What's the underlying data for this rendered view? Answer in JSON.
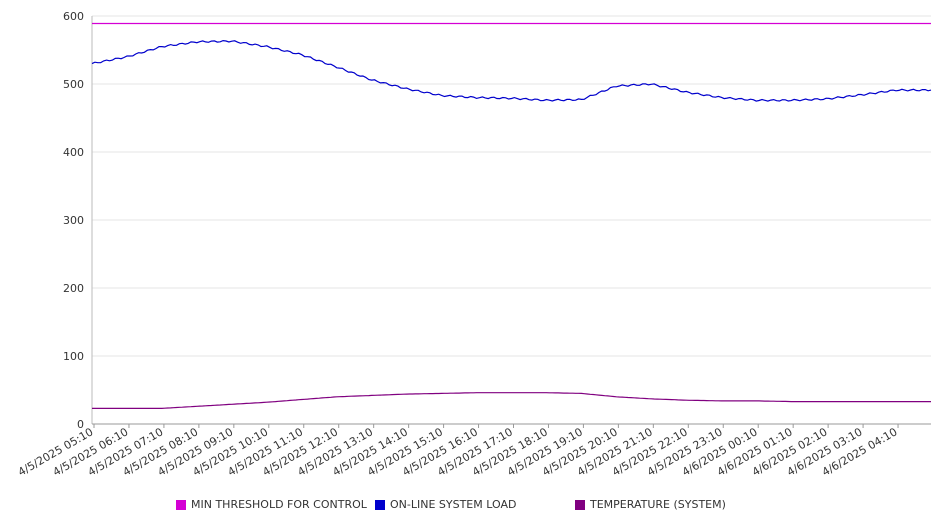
{
  "chart_data": {
    "type": "line",
    "y_ticks": [
      "0",
      "100",
      "200",
      "300",
      "400",
      "500",
      "600"
    ],
    "ylim": [
      0,
      600
    ],
    "grid": true,
    "legend_placement": "bottom",
    "x": [
      "4/5/2025 05:10",
      "4/5/2025 06:10",
      "4/5/2025 07:10",
      "4/5/2025 08:10",
      "4/5/2025 09:10",
      "4/5/2025 10:10",
      "4/5/2025 11:10",
      "4/5/2025 12:10",
      "4/5/2025 13:10",
      "4/5/2025 14:10",
      "4/5/2025 15:10",
      "4/5/2025 16:10",
      "4/5/2025 17:10",
      "4/5/2025 18:10",
      "4/5/2025 19:10",
      "4/5/2025 20:10",
      "4/5/2025 21:10",
      "4/5/2025 22:10",
      "4/5/2025 23:10",
      "4/6/2025 00:10",
      "4/6/2025 01:10",
      "4/6/2025 02:10",
      "4/6/2025 03:10",
      "4/6/2025 04:10"
    ],
    "series": [
      {
        "name": "MIN THRESHOLD FOR CONTROL",
        "color": "#d400d4",
        "values": [
          589,
          589,
          589,
          589,
          589,
          589,
          589,
          589,
          589,
          589,
          589,
          589,
          589,
          589,
          589,
          589,
          589,
          589,
          589,
          589,
          589,
          589,
          589,
          589
        ]
      },
      {
        "name": "ON-LINE SYSTEM LOAD",
        "color": "#0000cc",
        "values": [
          530,
          540,
          555,
          562,
          563,
          555,
          543,
          525,
          506,
          493,
          483,
          480,
          479,
          476,
          477,
          497,
          500,
          488,
          480,
          476,
          476,
          478,
          484,
          491
        ]
      },
      {
        "name": "TEMPERATURE (SYSTEM)",
        "color": "#800080",
        "values": [
          23,
          23,
          23,
          26,
          29,
          32,
          36,
          40,
          42,
          44,
          45,
          46,
          46,
          46,
          45,
          40,
          37,
          35,
          34,
          34,
          33,
          33,
          33,
          33
        ]
      }
    ]
  }
}
